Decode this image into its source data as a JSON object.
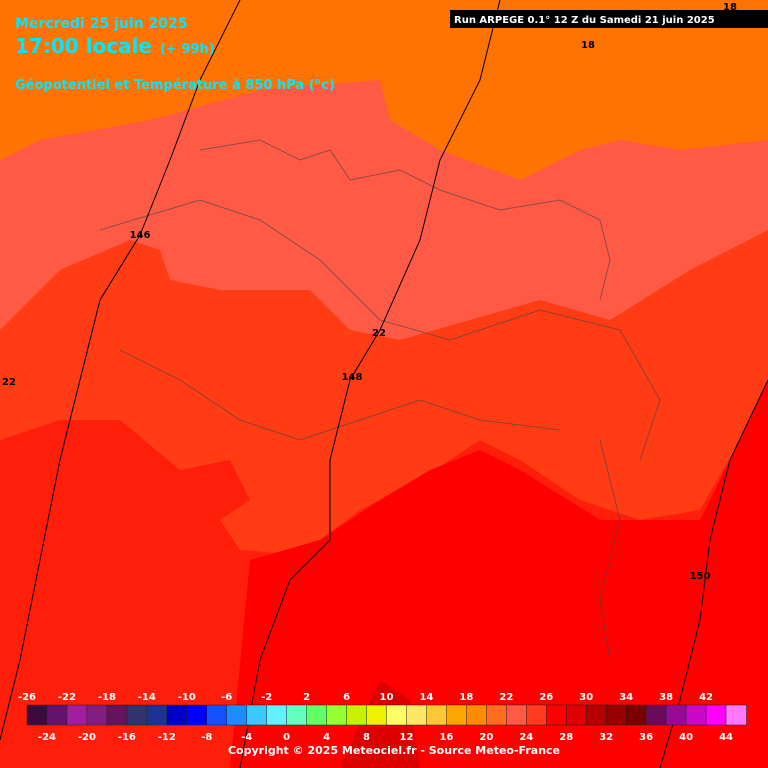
{
  "header": {
    "date": "Mercredi 25 juin 2025",
    "time": "17:00 locale",
    "lead": "(+ 99h)",
    "subtitle": "Géopotentiel et Température à 850 hPa (°c)",
    "run": "Run ARPEGE 0.1° 12 Z du Samedi 21 juin 2025"
  },
  "contour_labels": [
    "18",
    "18",
    "146",
    "22",
    "148",
    "22",
    "150"
  ],
  "colorbar": {
    "top_labels": [
      -26,
      -22,
      -18,
      -14,
      -10,
      -6,
      -2,
      2,
      6,
      10,
      14,
      18,
      22,
      26,
      30,
      34,
      38,
      42
    ],
    "bottom_labels": [
      -24,
      -20,
      -16,
      -12,
      -8,
      -4,
      0,
      4,
      8,
      12,
      16,
      20,
      24,
      28,
      32,
      36,
      40,
      44
    ],
    "range": [
      -26,
      46
    ],
    "colors": [
      "#3c0a3c",
      "#64146e",
      "#a01ea0",
      "#821e82",
      "#64145a",
      "#32326e",
      "#1e3296",
      "#0000c8",
      "#0000ff",
      "#1450ff",
      "#1e8cff",
      "#3cc8ff",
      "#64f0ff",
      "#64ffbe",
      "#64ff64",
      "#96ff32",
      "#c8f000",
      "#f0f000",
      "#ffff64",
      "#ffe664",
      "#ffc832",
      "#ffa500",
      "#ff8c00",
      "#ff6e1e",
      "#ff5a46",
      "#ff3c1e",
      "#ff0000",
      "#dc0000",
      "#b40000",
      "#960000",
      "#780000",
      "#6e0a5a",
      "#960a96",
      "#c80ac8",
      "#ff00ff",
      "#ff78ff"
    ]
  },
  "footer": {
    "copyright": "Copyright © 2025 Meteociel.fr - Source Meteo-France"
  }
}
